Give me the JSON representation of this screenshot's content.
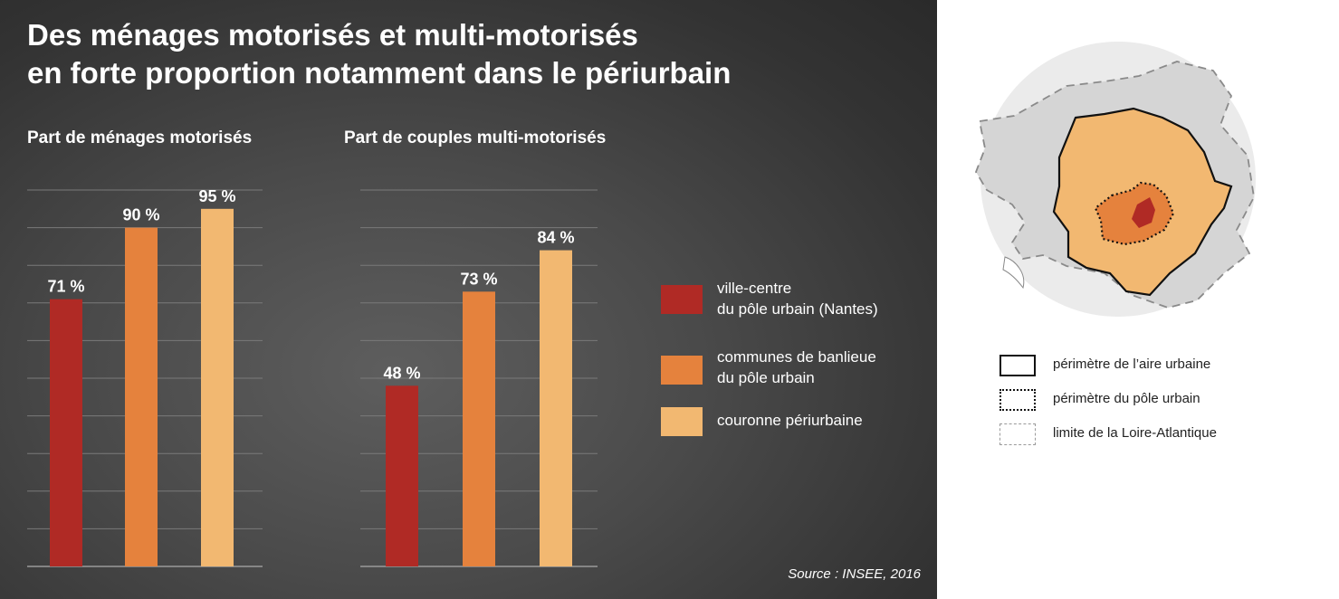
{
  "title_line1": "Des ménages motorisés et multi-motorisés",
  "title_line2": "en forte proportion notamment dans le périurbain",
  "colors": {
    "ville_centre": "#b02a25",
    "banlieue": "#e5823d",
    "couronne": "#f2b871",
    "gridline": "#7a7a7a",
    "map_disc": "#ebebeb",
    "map_department": "#d5d5d5",
    "map_aire": "#f2b871",
    "map_pole": "#e5823d",
    "map_centre": "#b02a25"
  },
  "chart_data": [
    {
      "type": "bar",
      "title": "Part de ménages motorisés",
      "categories": [
        "ville-centre du pôle urbain (Nantes)",
        "communes de banlieue du pôle urbain",
        "couronne périurbaine"
      ],
      "values": [
        71,
        90,
        95
      ],
      "value_labels": [
        "71 %",
        "90 %",
        "95 %"
      ],
      "ylim": [
        0,
        100
      ],
      "grid": true
    },
    {
      "type": "bar",
      "title": "Part de couples multi-motorisés",
      "categories": [
        "ville-centre du pôle urbain (Nantes)",
        "communes de banlieue du pôle urbain",
        "couronne périurbaine"
      ],
      "values": [
        48,
        73,
        84
      ],
      "value_labels": [
        "48 %",
        "73 %",
        "84 %"
      ],
      "ylim": [
        0,
        100
      ],
      "grid": true
    }
  ],
  "legend": [
    {
      "label": "ville-centre du pôle urbain (Nantes)",
      "color": "#b02a25"
    },
    {
      "label": "communes de banlieue du pôle urbain",
      "color": "#e5823d"
    },
    {
      "label": "couronne périurbaine",
      "color": "#f2b871"
    }
  ],
  "map_legend": [
    {
      "label": "périmètre de l’aire urbaine",
      "border": "solid"
    },
    {
      "label": "périmètre du pôle urbain",
      "border": "dotted"
    },
    {
      "label": "limite de la Loire-Atlantique",
      "border": "dashed"
    }
  ],
  "source": "Source : INSEE, 2016"
}
